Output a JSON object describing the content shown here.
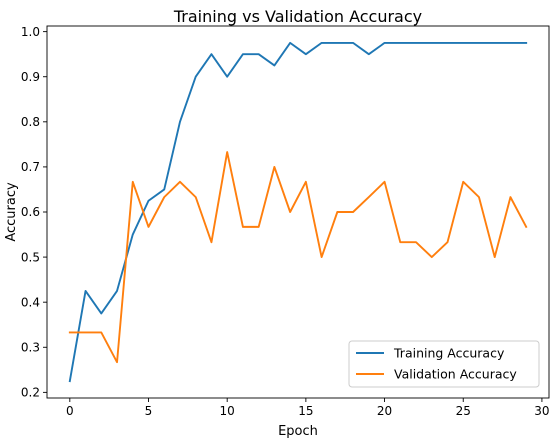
{
  "chart_data": {
    "type": "line",
    "title": "Training vs Validation Accuracy",
    "xlabel": "Epoch",
    "ylabel": "Accuracy",
    "xlim": [
      -1.45,
      30.45
    ],
    "ylim": [
      0.1875,
      1.0125
    ],
    "xticks": [
      0,
      5,
      10,
      15,
      20,
      25,
      30
    ],
    "yticks": [
      0.2,
      0.3,
      0.4,
      0.5,
      0.6,
      0.7,
      0.8,
      0.9,
      1.0
    ],
    "ytick_labels": [
      "0.2",
      "0.3",
      "0.4",
      "0.5",
      "0.6",
      "0.7",
      "0.8",
      "0.9",
      "1.0"
    ],
    "grid": false,
    "legend": "lower-right",
    "x": [
      0,
      1,
      2,
      3,
      4,
      5,
      6,
      7,
      8,
      9,
      10,
      11,
      12,
      13,
      14,
      15,
      16,
      17,
      18,
      19,
      20,
      21,
      22,
      23,
      24,
      25,
      26,
      27,
      28,
      29
    ],
    "series": [
      {
        "name": "Training Accuracy",
        "color": "#1f77b4",
        "values": [
          0.225,
          0.425,
          0.375,
          0.425,
          0.55,
          0.625,
          0.65,
          0.8,
          0.9,
          0.95,
          0.9,
          0.95,
          0.95,
          0.925,
          0.975,
          0.95,
          0.975,
          0.975,
          0.975,
          0.95,
          0.975,
          0.975,
          0.975,
          0.975,
          0.975,
          0.975,
          0.975,
          0.975,
          0.975,
          0.975
        ]
      },
      {
        "name": "Validation Accuracy",
        "color": "#ff7f0e",
        "values": [
          0.333,
          0.333,
          0.333,
          0.267,
          0.667,
          0.567,
          0.633,
          0.667,
          0.633,
          0.533,
          0.733,
          0.567,
          0.567,
          0.7,
          0.6,
          0.667,
          0.5,
          0.6,
          0.6,
          0.633,
          0.667,
          0.533,
          0.533,
          0.5,
          0.533,
          0.667,
          0.633,
          0.5,
          0.633,
          0.567
        ]
      }
    ]
  }
}
